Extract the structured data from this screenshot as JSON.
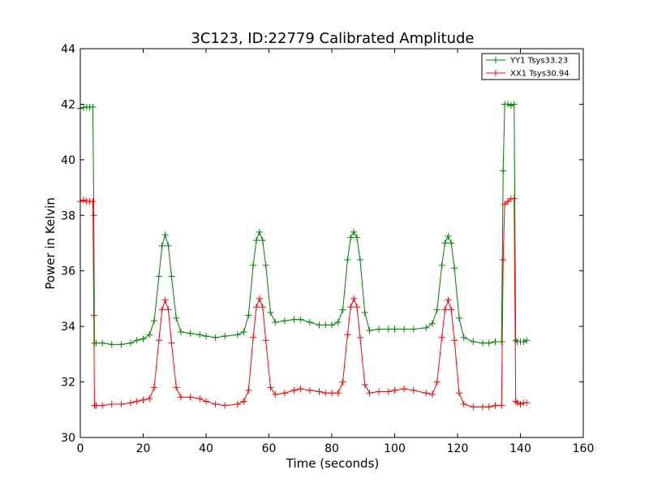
{
  "chart_data": {
    "type": "line",
    "title": "3C123, ID:22779 Calibrated Amplitude",
    "xlabel": "Time (seconds)",
    "ylabel": "Power in Kelvin",
    "xlim": [
      0,
      160
    ],
    "ylim": [
      30,
      44
    ],
    "xticks": [
      "0",
      "20",
      "40",
      "60",
      "80",
      "100",
      "120",
      "140",
      "160"
    ],
    "yticks": [
      "30",
      "32",
      "34",
      "36",
      "38",
      "40",
      "42",
      "44"
    ],
    "grid": false,
    "legend_position": "top-right",
    "marker": "plus",
    "series": [
      {
        "name": "YY1 Tsys33.23",
        "color": "#008000",
        "x": [
          0,
          1,
          2,
          3,
          4,
          4.3,
          4.5,
          5,
          7,
          10,
          13,
          16,
          18,
          20,
          22,
          23.5,
          25,
          26,
          27,
          28,
          29,
          30.5,
          32,
          35,
          38,
          40,
          43,
          46,
          50,
          52,
          53.5,
          55,
          56,
          57,
          58,
          59,
          60.5,
          62,
          65,
          68,
          70,
          73,
          76,
          78,
          80,
          82,
          83.5,
          85,
          86,
          87,
          88,
          89,
          90.5,
          92,
          95,
          98,
          100,
          103,
          106,
          110,
          112,
          113.5,
          115,
          116,
          117,
          118,
          119,
          120.5,
          122,
          125,
          128,
          130,
          132,
          134,
          134.5,
          135,
          136,
          137,
          138,
          138.5,
          139,
          140,
          141,
          142
        ],
        "y": [
          41.85,
          41.88,
          41.9,
          41.9,
          41.9,
          38,
          33.4,
          33.4,
          33.4,
          33.35,
          33.35,
          33.4,
          33.5,
          33.55,
          33.7,
          34.2,
          35.8,
          36.9,
          37.3,
          36.9,
          35.8,
          34.3,
          33.8,
          33.75,
          33.7,
          33.65,
          33.6,
          33.65,
          33.7,
          33.8,
          34.4,
          36.2,
          37.1,
          37.4,
          37.1,
          36.2,
          34.5,
          34.15,
          34.2,
          34.25,
          34.25,
          34.15,
          34.05,
          34.05,
          34.05,
          34.15,
          34.6,
          36.4,
          37.2,
          37.4,
          37.2,
          36.4,
          34.5,
          33.85,
          33.9,
          33.9,
          33.9,
          33.9,
          33.9,
          33.95,
          34.1,
          34.6,
          36.2,
          37.0,
          37.25,
          37.0,
          36.1,
          34.3,
          33.6,
          33.45,
          33.4,
          33.4,
          33.45,
          33.45,
          39.6,
          42.0,
          42.0,
          41.95,
          42.0,
          33.5,
          33.45,
          33.45,
          33.45,
          33.5
        ]
      },
      {
        "name": "XX1 Tsys30.94",
        "color": "#ff0000",
        "x": [
          0,
          1,
          2,
          3,
          4,
          4.3,
          4.5,
          5,
          7,
          10,
          13,
          16,
          18,
          20,
          22,
          23.5,
          25,
          26,
          27,
          28,
          29,
          30.5,
          32,
          35,
          38,
          40,
          43,
          46,
          50,
          52,
          53.5,
          55,
          56,
          57,
          58,
          59,
          60.5,
          62,
          65,
          68,
          70,
          73,
          76,
          78,
          80,
          82,
          83.5,
          85,
          86,
          87,
          88,
          89,
          90.5,
          92,
          95,
          98,
          100,
          103,
          106,
          110,
          112,
          113.5,
          115,
          116,
          117,
          118,
          119,
          120.5,
          122,
          125,
          128,
          130,
          132,
          134,
          134.5,
          135,
          136,
          137,
          138,
          138.5,
          139,
          140,
          141,
          142
        ],
        "y": [
          38.5,
          38.55,
          38.5,
          38.5,
          38.5,
          34.4,
          31.15,
          31.15,
          31.15,
          31.2,
          31.2,
          31.25,
          31.3,
          31.35,
          31.4,
          31.8,
          33.5,
          34.6,
          34.95,
          34.6,
          33.4,
          31.8,
          31.45,
          31.45,
          31.4,
          31.3,
          31.2,
          31.15,
          31.2,
          31.3,
          31.7,
          33.6,
          34.7,
          35.0,
          34.7,
          33.5,
          31.8,
          31.55,
          31.6,
          31.7,
          31.75,
          31.7,
          31.65,
          31.6,
          31.6,
          31.6,
          32.0,
          33.7,
          34.7,
          35.0,
          34.7,
          33.6,
          31.9,
          31.6,
          31.65,
          31.65,
          31.7,
          31.75,
          31.7,
          31.6,
          31.55,
          32.0,
          33.6,
          34.6,
          34.95,
          34.6,
          33.5,
          31.6,
          31.2,
          31.1,
          31.1,
          31.1,
          31.15,
          31.15,
          36.4,
          38.4,
          38.5,
          38.6,
          38.6,
          31.3,
          31.25,
          31.2,
          31.25,
          31.25
        ]
      }
    ]
  }
}
